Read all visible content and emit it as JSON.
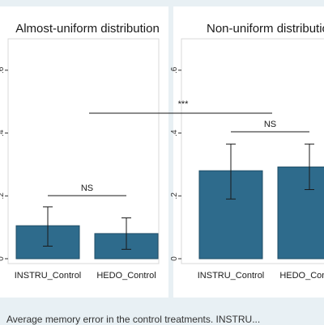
{
  "figure": {
    "caption": "Average memory error in the control treatments. INSTRU..."
  },
  "chart_data": [
    {
      "type": "bar",
      "title": "Almost-uniform distribution",
      "categories": [
        "INSTRU_Control",
        "HEDO_Control"
      ],
      "values": [
        0.105,
        0.08
      ],
      "error_low": [
        0.04,
        0.03
      ],
      "error_high": [
        0.165,
        0.13
      ],
      "ylim": [
        0,
        0.7
      ],
      "yticks": [
        0,
        0.2,
        0.4,
        0.6
      ],
      "ytick_labels": [
        "0",
        ".2",
        ".4",
        ".6"
      ],
      "annotation": "NS",
      "bar_color": "#2e6b8c"
    },
    {
      "type": "bar",
      "title": "Non-uniform distribution",
      "categories": [
        "INSTRU_Control",
        "HEDO_Control"
      ],
      "values": [
        0.28,
        0.292
      ],
      "error_low": [
        0.19,
        0.22
      ],
      "error_high": [
        0.365,
        0.365
      ],
      "ylim": [
        0,
        0.7
      ],
      "yticks": [
        0,
        0.2,
        0.4,
        0.6
      ],
      "ytick_labels": [
        "0",
        ".2",
        ".4",
        ".6"
      ],
      "annotation": "NS",
      "bar_color": "#2e6b8c"
    }
  ],
  "cross_annotation": "***"
}
